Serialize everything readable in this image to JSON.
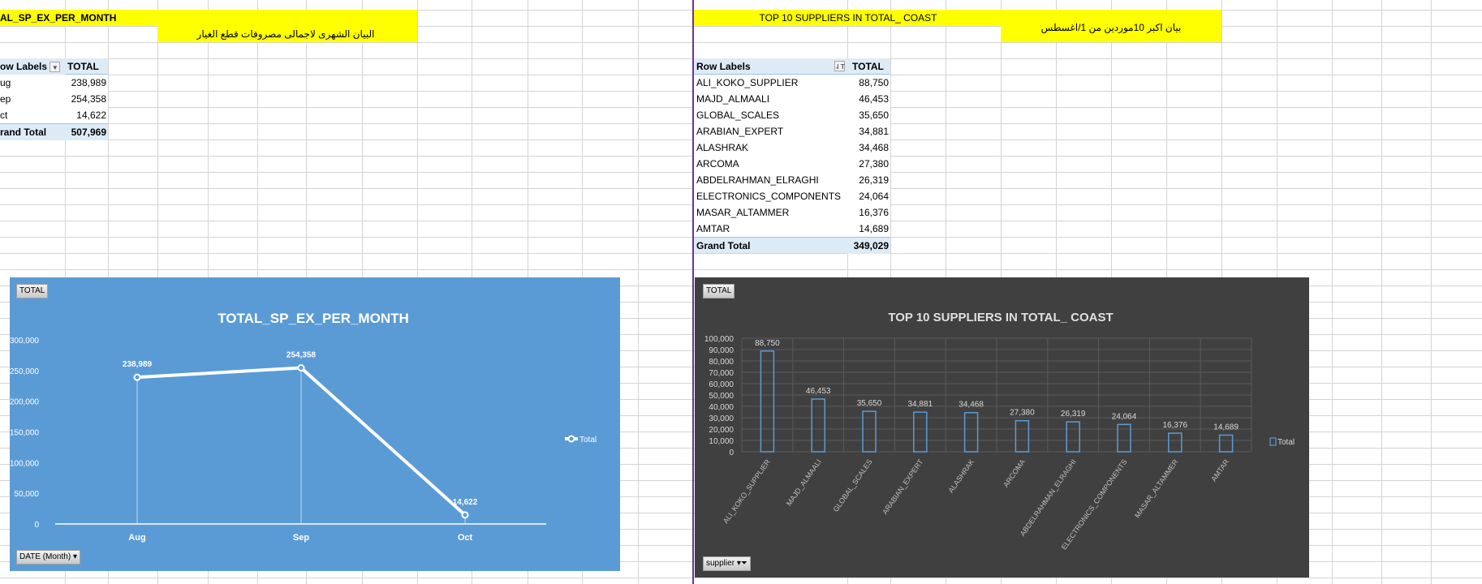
{
  "left": {
    "banner_title": "AL_SP_EX_PER_MONTH",
    "banner_subtitle": "البيان الشهرى لاجمالى مصروفات قطع الغيار",
    "pivot": {
      "header_label": "ow Labels",
      "header_value": "TOTAL",
      "rows": [
        {
          "label": "ug",
          "value": "238,989"
        },
        {
          "label": "ep",
          "value": "254,358"
        },
        {
          "label": "ct",
          "value": "14,622"
        }
      ],
      "grand_total_label": "rand Total",
      "grand_total_value": "507,969"
    }
  },
  "right": {
    "banner_title": "TOP 10  SUPPLIERS IN TOTAL_ COAST",
    "banner_subtitle": "بيان اكبر 10موردين من 1/اغسطس",
    "pivot": {
      "header_label": "Row Labels",
      "header_value": "TOTAL",
      "rows": [
        {
          "label": "ALI_KOKO_SUPPLIER",
          "value": "88,750"
        },
        {
          "label": "MAJD_ALMAALI",
          "value": "46,453"
        },
        {
          "label": "GLOBAL_SCALES",
          "value": "35,650"
        },
        {
          "label": "ARABIAN_EXPERT",
          "value": "34,881"
        },
        {
          "label": "ALASHRAK",
          "value": "34,468"
        },
        {
          "label": "ARCOMA",
          "value": "27,380"
        },
        {
          "label": "ABDELRAHMAN_ELRAGHI",
          "value": "26,319"
        },
        {
          "label": "ELECTRONICS_COMPONENTS",
          "value": "24,064"
        },
        {
          "label": "MASAR_ALTAMMER",
          "value": "16,376"
        },
        {
          "label": "AMTAR",
          "value": "14,689"
        }
      ],
      "grand_total_label": "Grand Total",
      "grand_total_value": "349,029"
    }
  },
  "chart_data": [
    {
      "type": "line",
      "title": "TOTAL_SP_EX_PER_MONTH",
      "value_button": "TOTAL",
      "axis_button": "DATE (Month)",
      "categories": [
        "Aug",
        "Sep",
        "Oct"
      ],
      "series": [
        {
          "name": "Total",
          "values": [
            238989,
            254358,
            14622
          ]
        }
      ],
      "data_labels": [
        "238,989",
        "254,358",
        "14,622"
      ],
      "ylim": [
        0,
        300000
      ],
      "yticks": [
        "0",
        "50,000",
        "100,000",
        "150,000",
        "200,000",
        "250,000",
        "300,000"
      ],
      "legend": "right",
      "grid": false,
      "background": "#5b9bd5",
      "line_color": "#ffffff"
    },
    {
      "type": "bar",
      "title": "TOP 10  SUPPLIERS IN TOTAL_ COAST",
      "value_button": "TOTAL",
      "axis_button": "supplier",
      "categories": [
        "ALI_KOKO_SUPPLIER",
        "MAJD_ALMAALI",
        "GLOBAL_SCALES",
        "ARABIAN_EXPERT",
        "ALASHRAK",
        "ARCOMA",
        "ABDELRAHMAN_ELRAGHI",
        "ELECTRONICS_COMPONENTS",
        "MASAR_ALTAMMER",
        "AMTAR"
      ],
      "series": [
        {
          "name": "Total",
          "values": [
            88750,
            46453,
            35650,
            34881,
            34468,
            27380,
            26319,
            24064,
            16376,
            14689
          ]
        }
      ],
      "data_labels": [
        "88,750",
        "46,453",
        "35,650",
        "34,881",
        "34,468",
        "27,380",
        "26,319",
        "24,064",
        "16,376",
        "14,689"
      ],
      "ylim": [
        0,
        100000
      ],
      "yticks": [
        "0",
        "10,000",
        "20,000",
        "30,000",
        "40,000",
        "50,000",
        "60,000",
        "70,000",
        "80,000",
        "90,000",
        "100,000"
      ],
      "legend": "right",
      "grid": true,
      "background": "#404040",
      "bar_color": "#5b9bd5"
    }
  ]
}
